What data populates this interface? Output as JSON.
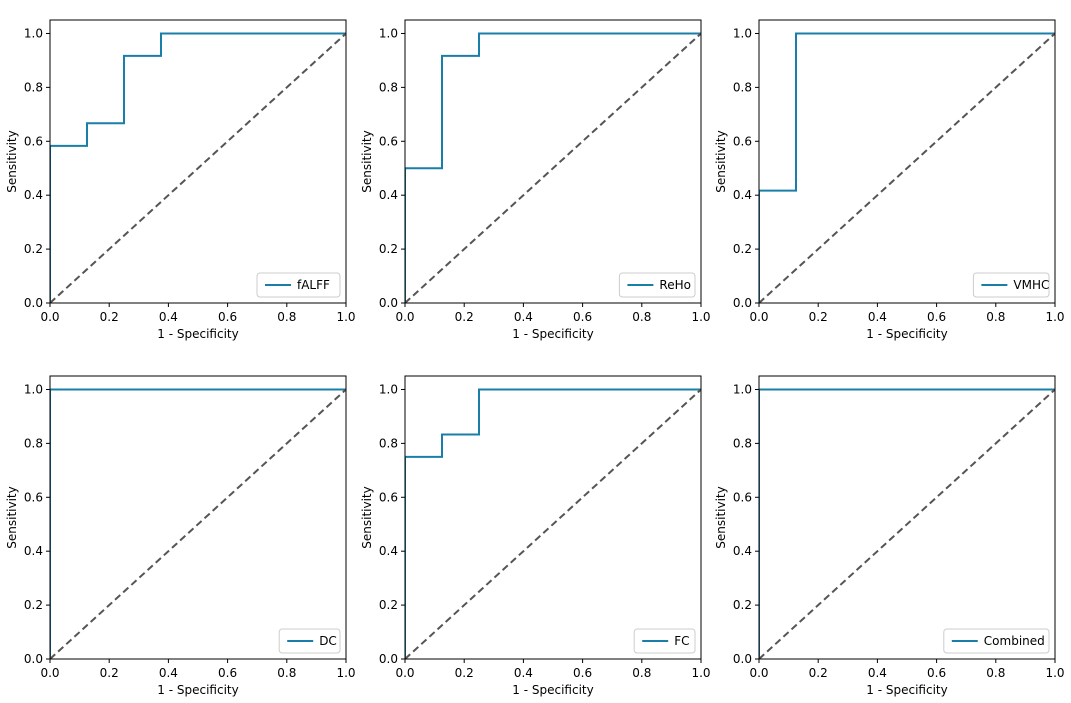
{
  "figure": {
    "background": "#ffffff"
  },
  "colors": {
    "roc": "#1a7fa8",
    "diagonal": "#555555",
    "frame": "#000000",
    "legend_border": "#cccccc"
  },
  "chart_data": [
    {
      "type": "line",
      "title": "",
      "xlabel": "1 - Specificity",
      "ylabel": "Sensitivity",
      "xlim": [
        0,
        1.0
      ],
      "ylim": [
        0,
        1.05
      ],
      "xticks": [
        "0.0",
        "0.2",
        "0.4",
        "0.6",
        "0.8",
        "1.0"
      ],
      "yticks": [
        "0.0",
        "0.2",
        "0.4",
        "0.6",
        "0.8",
        "1.0"
      ],
      "legend": "lower-right",
      "series": [
        {
          "name": "fALFF",
          "style": "step",
          "x": [
            0,
            0,
            0.125,
            0.125,
            0.25,
            0.25,
            0.375,
            0.375,
            1.0
          ],
          "y": [
            0,
            0.583,
            0.583,
            0.667,
            0.667,
            0.917,
            0.917,
            1.0,
            1.0
          ]
        },
        {
          "name": "Chance",
          "style": "dashed",
          "legend": false,
          "x": [
            0,
            1
          ],
          "y": [
            0,
            1
          ]
        }
      ]
    },
    {
      "type": "line",
      "title": "",
      "xlabel": "1 - Specificity",
      "ylabel": "Sensitivity",
      "xlim": [
        0,
        1.0
      ],
      "ylim": [
        0,
        1.05
      ],
      "xticks": [
        "0.0",
        "0.2",
        "0.4",
        "0.6",
        "0.8",
        "1.0"
      ],
      "yticks": [
        "0.0",
        "0.2",
        "0.4",
        "0.6",
        "0.8",
        "1.0"
      ],
      "legend": "lower-right",
      "series": [
        {
          "name": "ReHo",
          "style": "step",
          "x": [
            0,
            0,
            0.125,
            0.125,
            0.25,
            0.25,
            1.0
          ],
          "y": [
            0,
            0.5,
            0.5,
            0.917,
            0.917,
            1.0,
            1.0
          ]
        },
        {
          "name": "Chance",
          "style": "dashed",
          "legend": false,
          "x": [
            0,
            1
          ],
          "y": [
            0,
            1
          ]
        }
      ]
    },
    {
      "type": "line",
      "title": "",
      "xlabel": "1 - Specificity",
      "ylabel": "Sensitivity",
      "xlim": [
        0,
        1.0
      ],
      "ylim": [
        0,
        1.05
      ],
      "xticks": [
        "0.0",
        "0.2",
        "0.4",
        "0.6",
        "0.8",
        "1.0"
      ],
      "yticks": [
        "0.0",
        "0.2",
        "0.4",
        "0.6",
        "0.8",
        "1.0"
      ],
      "legend": "lower-right",
      "series": [
        {
          "name": "VMHC",
          "style": "step",
          "x": [
            0,
            0,
            0.125,
            0.125,
            1.0
          ],
          "y": [
            0,
            0.417,
            0.417,
            1.0,
            1.0
          ]
        },
        {
          "name": "Chance",
          "style": "dashed",
          "legend": false,
          "x": [
            0,
            1
          ],
          "y": [
            0,
            1
          ]
        }
      ]
    },
    {
      "type": "line",
      "title": "",
      "xlabel": "1 - Specificity",
      "ylabel": "Sensitivity",
      "xlim": [
        0,
        1.0
      ],
      "ylim": [
        0,
        1.05
      ],
      "xticks": [
        "0.0",
        "0.2",
        "0.4",
        "0.6",
        "0.8",
        "1.0"
      ],
      "yticks": [
        "0.0",
        "0.2",
        "0.4",
        "0.6",
        "0.8",
        "1.0"
      ],
      "legend": "lower-right",
      "series": [
        {
          "name": "DC",
          "style": "step",
          "x": [
            0,
            0,
            1.0
          ],
          "y": [
            0,
            1.0,
            1.0
          ]
        },
        {
          "name": "Chance",
          "style": "dashed",
          "legend": false,
          "x": [
            0,
            1
          ],
          "y": [
            0,
            1
          ]
        }
      ]
    },
    {
      "type": "line",
      "title": "",
      "xlabel": "1 - Specificity",
      "ylabel": "Sensitivity",
      "xlim": [
        0,
        1.0
      ],
      "ylim": [
        0,
        1.05
      ],
      "xticks": [
        "0.0",
        "0.2",
        "0.4",
        "0.6",
        "0.8",
        "1.0"
      ],
      "yticks": [
        "0.0",
        "0.2",
        "0.4",
        "0.6",
        "0.8",
        "1.0"
      ],
      "legend": "lower-right",
      "series": [
        {
          "name": "FC",
          "style": "step",
          "x": [
            0,
            0,
            0.125,
            0.125,
            0.25,
            0.25,
            1.0
          ],
          "y": [
            0,
            0.75,
            0.75,
            0.833,
            0.833,
            1.0,
            1.0
          ]
        },
        {
          "name": "Chance",
          "style": "dashed",
          "legend": false,
          "x": [
            0,
            1
          ],
          "y": [
            0,
            1
          ]
        }
      ]
    },
    {
      "type": "line",
      "title": "",
      "xlabel": "1 - Specificity",
      "ylabel": "Sensitivity",
      "xlim": [
        0,
        1.0
      ],
      "ylim": [
        0,
        1.05
      ],
      "xticks": [
        "0.0",
        "0.2",
        "0.4",
        "0.6",
        "0.8",
        "1.0"
      ],
      "yticks": [
        "0.0",
        "0.2",
        "0.4",
        "0.6",
        "0.8",
        "1.0"
      ],
      "legend": "lower-right",
      "series": [
        {
          "name": "Combined",
          "style": "step",
          "x": [
            0,
            0,
            1.0
          ],
          "y": [
            0,
            1.0,
            1.0
          ]
        },
        {
          "name": "Chance",
          "style": "dashed",
          "legend": false,
          "x": [
            0,
            1
          ],
          "y": [
            0,
            1
          ]
        }
      ]
    }
  ]
}
